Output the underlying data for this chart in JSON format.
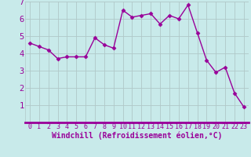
{
  "x": [
    0,
    1,
    2,
    3,
    4,
    5,
    6,
    7,
    8,
    9,
    10,
    11,
    12,
    13,
    14,
    15,
    16,
    17,
    18,
    19,
    20,
    21,
    22,
    23
  ],
  "y": [
    4.6,
    4.4,
    4.2,
    3.7,
    3.8,
    3.8,
    3.8,
    4.9,
    4.5,
    4.3,
    6.5,
    6.1,
    6.2,
    6.3,
    5.7,
    6.2,
    6.0,
    6.8,
    5.2,
    3.6,
    2.9,
    3.2,
    1.7,
    0.9
  ],
  "line_color": "#990099",
  "marker": "D",
  "marker_size": 2.5,
  "bg_color": "#c8eaea",
  "grid_color": "#b0c8c8",
  "xlabel": "Windchill (Refroidissement éolien,°C)",
  "xlim": [
    -0.5,
    23.5
  ],
  "ylim": [
    0,
    7
  ],
  "yticks": [
    1,
    2,
    3,
    4,
    5,
    6,
    7
  ],
  "xticks": [
    0,
    1,
    2,
    3,
    4,
    5,
    6,
    7,
    8,
    9,
    10,
    11,
    12,
    13,
    14,
    15,
    16,
    17,
    18,
    19,
    20,
    21,
    22,
    23
  ],
  "tick_color": "#990099",
  "label_color": "#990099",
  "xlabel_fontsize": 7.0,
  "ytick_fontsize": 7.5,
  "xtick_fontsize": 6.0,
  "spine_color": "#990099",
  "bottom_spine_width": 2.0
}
